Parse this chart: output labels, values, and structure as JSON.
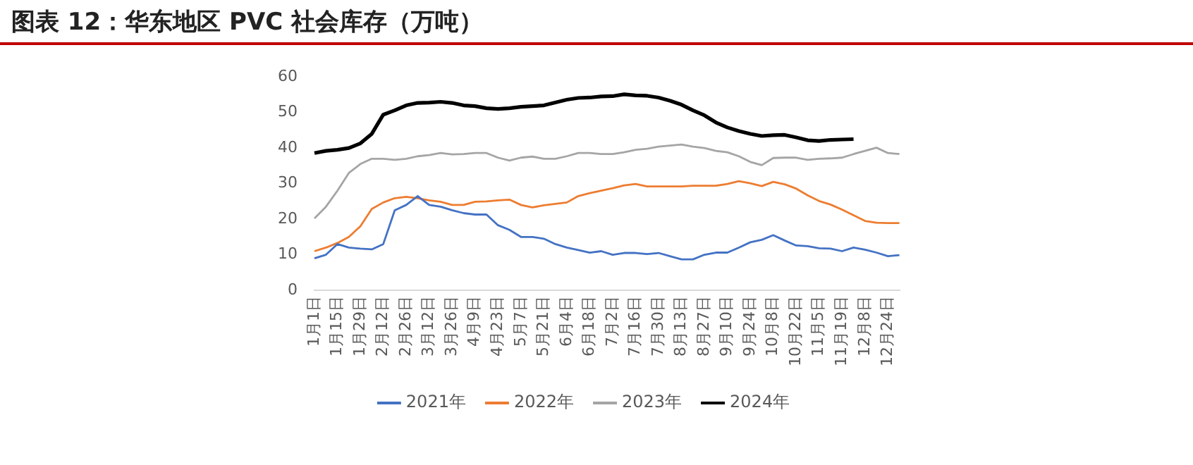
{
  "chart_data": {
    "type": "line",
    "title": "图表 12：华东地区 PVC 社会库存（万吨）",
    "categories": [
      "1月1日",
      null,
      "1月15日",
      null,
      "1月29日",
      null,
      "2月12日",
      null,
      "2月26日",
      null,
      "3月12日",
      null,
      "3月26日",
      null,
      "4月9日",
      null,
      "4月23日",
      null,
      "5月7日",
      null,
      "5月21日",
      null,
      "6月4日",
      null,
      "6月18日",
      null,
      "7月2日",
      null,
      "7月16日",
      null,
      "7月30日",
      null,
      "8月13日",
      null,
      "8月27日",
      null,
      "9月10日",
      null,
      "9月24日",
      null,
      "10月8日",
      null,
      "10月22日",
      null,
      "11月5日",
      null,
      "11月19日",
      null,
      "12月8日",
      null,
      "12月24日",
      null
    ],
    "series": [
      {
        "name": "2021年",
        "color": "#4472c4",
        "values": [
          9,
          10,
          13,
          12,
          11.7,
          11.5,
          13,
          22.5,
          24,
          26.5,
          24,
          23.5,
          22.5,
          21.7,
          21.3,
          21.3,
          18.3,
          17,
          15,
          15,
          14.5,
          13,
          12,
          11.3,
          10.6,
          11,
          10,
          10.5,
          10.5,
          10.2,
          10.5,
          9.6,
          8.7,
          8.7,
          10,
          10.6,
          10.6,
          12,
          13.5,
          14.2,
          15.5,
          14,
          12.6,
          12.4,
          11.8,
          11.7,
          11,
          12,
          11.4,
          10.6,
          9.6,
          9.9
        ]
      },
      {
        "name": "2022年",
        "color": "#ed7d31",
        "values": [
          11,
          12,
          13.3,
          15,
          18,
          22.9,
          24.7,
          25.9,
          26.3,
          25.9,
          25.3,
          24.9,
          24,
          24,
          24.9,
          25,
          25.3,
          25.5,
          24,
          23.3,
          23.9,
          24.3,
          24.7,
          26.5,
          27.3,
          28,
          28.7,
          29.5,
          29.9,
          29.2,
          29.2,
          29.2,
          29.2,
          29.4,
          29.4,
          29.4,
          29.9,
          30.7,
          30.1,
          29.3,
          30.5,
          29.8,
          28.6,
          26.7,
          25.1,
          24.1,
          22.7,
          21.1,
          19.5,
          19,
          18.9,
          18.9
        ]
      },
      {
        "name": "2023年",
        "color": "#a5a5a5",
        "values": [
          20.2,
          23.5,
          28,
          33,
          35.5,
          37,
          37,
          36.7,
          37,
          37.7,
          38,
          38.6,
          38.2,
          38.3,
          38.6,
          38.6,
          37.3,
          36.5,
          37.3,
          37.6,
          37,
          37,
          37.7,
          38.6,
          38.6,
          38.3,
          38.3,
          38.8,
          39.5,
          39.8,
          40.4,
          40.7,
          41,
          40.4,
          40,
          39.2,
          38.8,
          37.7,
          36.1,
          35.2,
          37.2,
          37.3,
          37.3,
          36.7,
          37,
          37.1,
          37.3,
          38.3,
          39.2,
          40.1,
          38.6,
          38.3
        ]
      },
      {
        "name": "2024年",
        "color": "#000000",
        "values": [
          38.6,
          39.2,
          39.5,
          40,
          41.3,
          44,
          49.4,
          50.6,
          52,
          52.7,
          52.8,
          53,
          52.7,
          52,
          51.8,
          51.2,
          51,
          51.2,
          51.6,
          51.8,
          52,
          52.8,
          53.6,
          54.1,
          54.2,
          54.5,
          54.6,
          55.1,
          54.8,
          54.7,
          54.2,
          53.3,
          52.2,
          50.6,
          49.2,
          47.2,
          45.8,
          44.8,
          44,
          43.4,
          43.6,
          43.7,
          43,
          42.2,
          42,
          42.3,
          42.4,
          42.5,
          null,
          null,
          null,
          null
        ]
      }
    ],
    "ylim": [
      0,
      60
    ],
    "yticks": [
      0,
      10,
      20,
      30,
      40,
      50,
      60
    ],
    "grid": false,
    "legend": "bottom",
    "marker": "none",
    "line_style": "solid"
  }
}
